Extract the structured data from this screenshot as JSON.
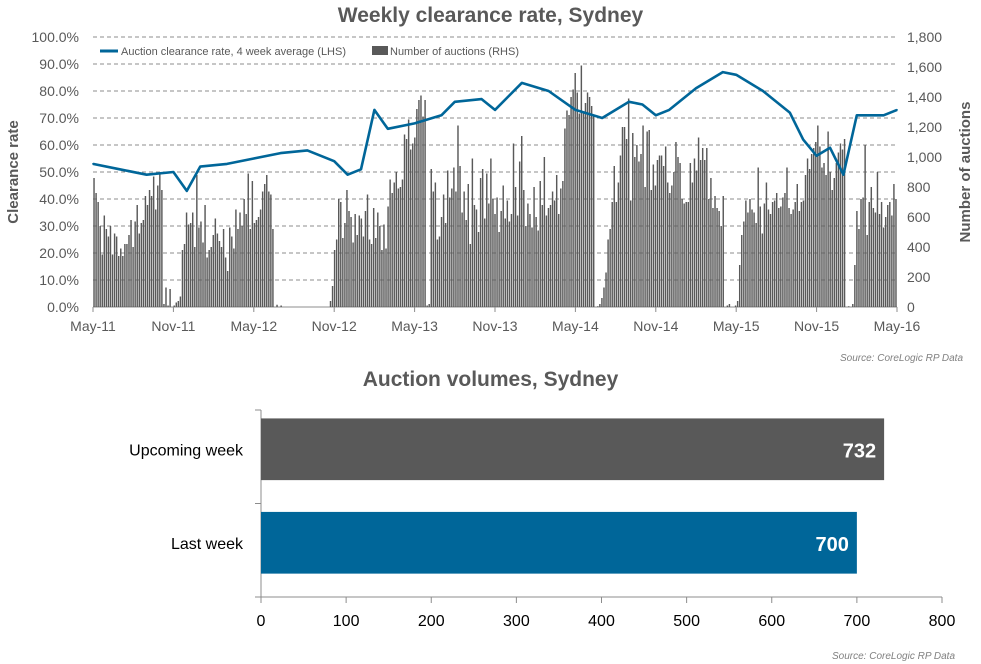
{
  "chart_data": [
    {
      "type": "line+bar",
      "title": "Weekly clearance rate, Sydney",
      "ylabel_left": "Clearance rate",
      "ylabel_right": "Number of auctions",
      "x_ticks": [
        "May-11",
        "Nov-11",
        "May-12",
        "Nov-12",
        "May-13",
        "Nov-13",
        "May-14",
        "Nov-14",
        "May-15",
        "Nov-15",
        "May-16"
      ],
      "y_left_ticks": [
        "0.0%",
        "10.0%",
        "20.0%",
        "30.0%",
        "40.0%",
        "50.0%",
        "60.0%",
        "70.0%",
        "80.0%",
        "90.0%",
        "100.0%"
      ],
      "y_left_range": [
        0,
        100
      ],
      "y_right_ticks": [
        "0",
        "200",
        "400",
        "600",
        "800",
        "1,000",
        "1,200",
        "1,400",
        "1,600",
        "1,800"
      ],
      "y_right_range": [
        0,
        1800
      ],
      "grid": "horizontal dashed",
      "legend": {
        "position": "top-left",
        "entries": [
          "Auction clearance rate, 4 week average (LHS)",
          "Number of auctions (RHS)"
        ]
      },
      "series": [
        {
          "name": "Auction clearance rate, 4 week average (LHS)",
          "kind": "line",
          "color": "#006699",
          "points": [
            [
              "May-11",
              53
            ],
            [
              "Jul-11",
              51
            ],
            [
              "Sep-11",
              49
            ],
            [
              "Nov-11",
              50
            ],
            [
              "Dec-11",
              43
            ],
            [
              "Jan-12",
              52
            ],
            [
              "Mar-12",
              53
            ],
            [
              "May-12",
              55
            ],
            [
              "Jul-12",
              57
            ],
            [
              "Sep-12",
              58
            ],
            [
              "Nov-12",
              54
            ],
            [
              "Dec-12",
              49
            ],
            [
              "Jan-13",
              51
            ],
            [
              "Feb-13",
              73
            ],
            [
              "Mar-13",
              66
            ],
            [
              "May-13",
              68
            ],
            [
              "Jul-13",
              71
            ],
            [
              "Aug-13",
              76
            ],
            [
              "Oct-13",
              77
            ],
            [
              "Nov-13",
              73
            ],
            [
              "Jan-14",
              83
            ],
            [
              "Mar-14",
              80
            ],
            [
              "May-14",
              73
            ],
            [
              "Jul-14",
              70
            ],
            [
              "Sep-14",
              76
            ],
            [
              "Oct-14",
              75
            ],
            [
              "Nov-14",
              71
            ],
            [
              "Dec-14",
              73
            ],
            [
              "Feb-15",
              81
            ],
            [
              "Apr-15",
              87
            ],
            [
              "May-15",
              86
            ],
            [
              "Jul-15",
              80
            ],
            [
              "Sep-15",
              72
            ],
            [
              "Oct-15",
              62
            ],
            [
              "Nov-15",
              56
            ],
            [
              "Dec-15",
              59
            ],
            [
              "Jan-16",
              49
            ],
            [
              "Feb-16",
              71
            ],
            [
              "Apr-16",
              71
            ],
            [
              "May-16",
              73
            ]
          ]
        },
        {
          "name": "Number of auctions (RHS)",
          "kind": "bar",
          "color": "#595959",
          "values": [
            860,
            760,
            700,
            540,
            350,
            610,
            520,
            470,
            540,
            350,
            490,
            470,
            340,
            390,
            340,
            420,
            420,
            480,
            580,
            400,
            570,
            680,
            490,
            560,
            580,
            740,
            680,
            780,
            740,
            870,
            650,
            810,
            890,
            780,
            20,
            130,
            10,
            120,
            0,
            10,
            30,
            40,
            70,
            380,
            420,
            630,
            550,
            560,
            630,
            400,
            880,
            530,
            570,
            430,
            680,
            330,
            380,
            400,
            480,
            590,
            490,
            440,
            400,
            520,
            330,
            240,
            530,
            470,
            390,
            650,
            520,
            630,
            540,
            720,
            620,
            890,
            520,
            840,
            560,
            580,
            600,
            650,
            770,
            820,
            880,
            770,
            750,
            520,
            0,
            15,
            0,
            10,
            0,
            0,
            0,
            0,
            0,
            0,
            0,
            0,
            0,
            0,
            0,
            0,
            0,
            0,
            0,
            0,
            0,
            0,
            0,
            0,
            0,
            0,
            0,
            40,
            140,
            380,
            450,
            720,
            700,
            460,
            560,
            780,
            640,
            600,
            430,
            620,
            480,
            610,
            590,
            470,
            640,
            750,
            450,
            420,
            660,
            460,
            630,
            540,
            380,
            550,
            390,
            670,
            850,
            760,
            830,
            900,
            790,
            800,
            850,
            1150,
            1120,
            1250,
            1050,
            1090,
            1130,
            1320,
            1380,
            1410,
            1270,
            1380,
            10,
            20,
            920,
            770,
            830,
            450,
            470,
            600,
            750,
            560,
            910,
            730,
            790,
            930,
            770,
            1210,
            940,
            630,
            770,
            580,
            820,
            420,
            990,
            680,
            650,
            500,
            860,
            920,
            590,
            890,
            690,
            990,
            720,
            620,
            730,
            500,
            640,
            810,
            590,
            710,
            570,
            620,
            1090,
            800,
            610,
            970,
            1140,
            780,
            540,
            690,
            620,
            530,
            800,
            600,
            510,
            840,
            680,
            1000,
            610,
            660,
            680,
            770,
            710,
            880,
            620,
            790,
            840,
            1190,
            1310,
            1280,
            1400,
            1450,
            1560,
            1430,
            1290,
            1610,
            1300,
            1360,
            1430,
            1400,
            1340,
            1270,
            0,
            5,
            20,
            60,
            130,
            230,
            450,
            520,
            700,
            940,
            700,
            830,
            1010,
            1200,
            1200,
            1120,
            1390,
            710,
            1160,
            1000,
            1080,
            970,
            1020,
            1210,
            800,
            1170,
            1180,
            780,
            950,
            810,
            980,
            1010,
            1010,
            940,
            1070,
            830,
            760,
            810,
            900,
            1100,
            1000,
            960,
            720,
            690,
            700,
            700,
            960,
            830,
            990,
            910,
            1130,
            980,
            1060,
            980,
            1060,
            720,
            860,
            660,
            740,
            660,
            640,
            540,
            740,
            0,
            10,
            20,
            0,
            0,
            10,
            40,
            280,
            480,
            570,
            710,
            630,
            720,
            650,
            630,
            560,
            930,
            670,
            490,
            690,
            830,
            650,
            620,
            700,
            710,
            760,
            660,
            670,
            730,
            760,
            930,
            660,
            620,
            650,
            700,
            820,
            640,
            700,
            710,
            880,
            990,
            920,
            1020,
            1060,
            1100,
            1210,
            1070,
            930,
            960,
            880,
            1170,
            900,
            780,
            860,
            960,
            1030,
            1090,
            1050,
            1120,
            0,
            5,
            0,
            20,
            280,
            640,
            520,
            720,
            730,
            1080,
            480,
            700,
            800,
            660,
            630,
            900,
            620,
            700,
            530,
            600,
            680,
            700,
            610,
            820,
            720
          ],
          "values_note": ""
        }
      ]
    },
    {
      "type": "bar",
      "orientation": "horizontal",
      "title": "Auction volumes, Sydney",
      "categories": [
        "Upcoming week",
        "Last week"
      ],
      "values": [
        732,
        700
      ],
      "colors": [
        "#595959",
        "#006699"
      ],
      "xlim": [
        0,
        800
      ],
      "x_ticks": [
        "0",
        "100",
        "200",
        "300",
        "400",
        "500",
        "600",
        "700",
        "800"
      ],
      "grid": "none"
    }
  ],
  "sources": [
    "Source: CoreLogic  RP Data",
    "Source: CoreLogic  RP Data"
  ]
}
